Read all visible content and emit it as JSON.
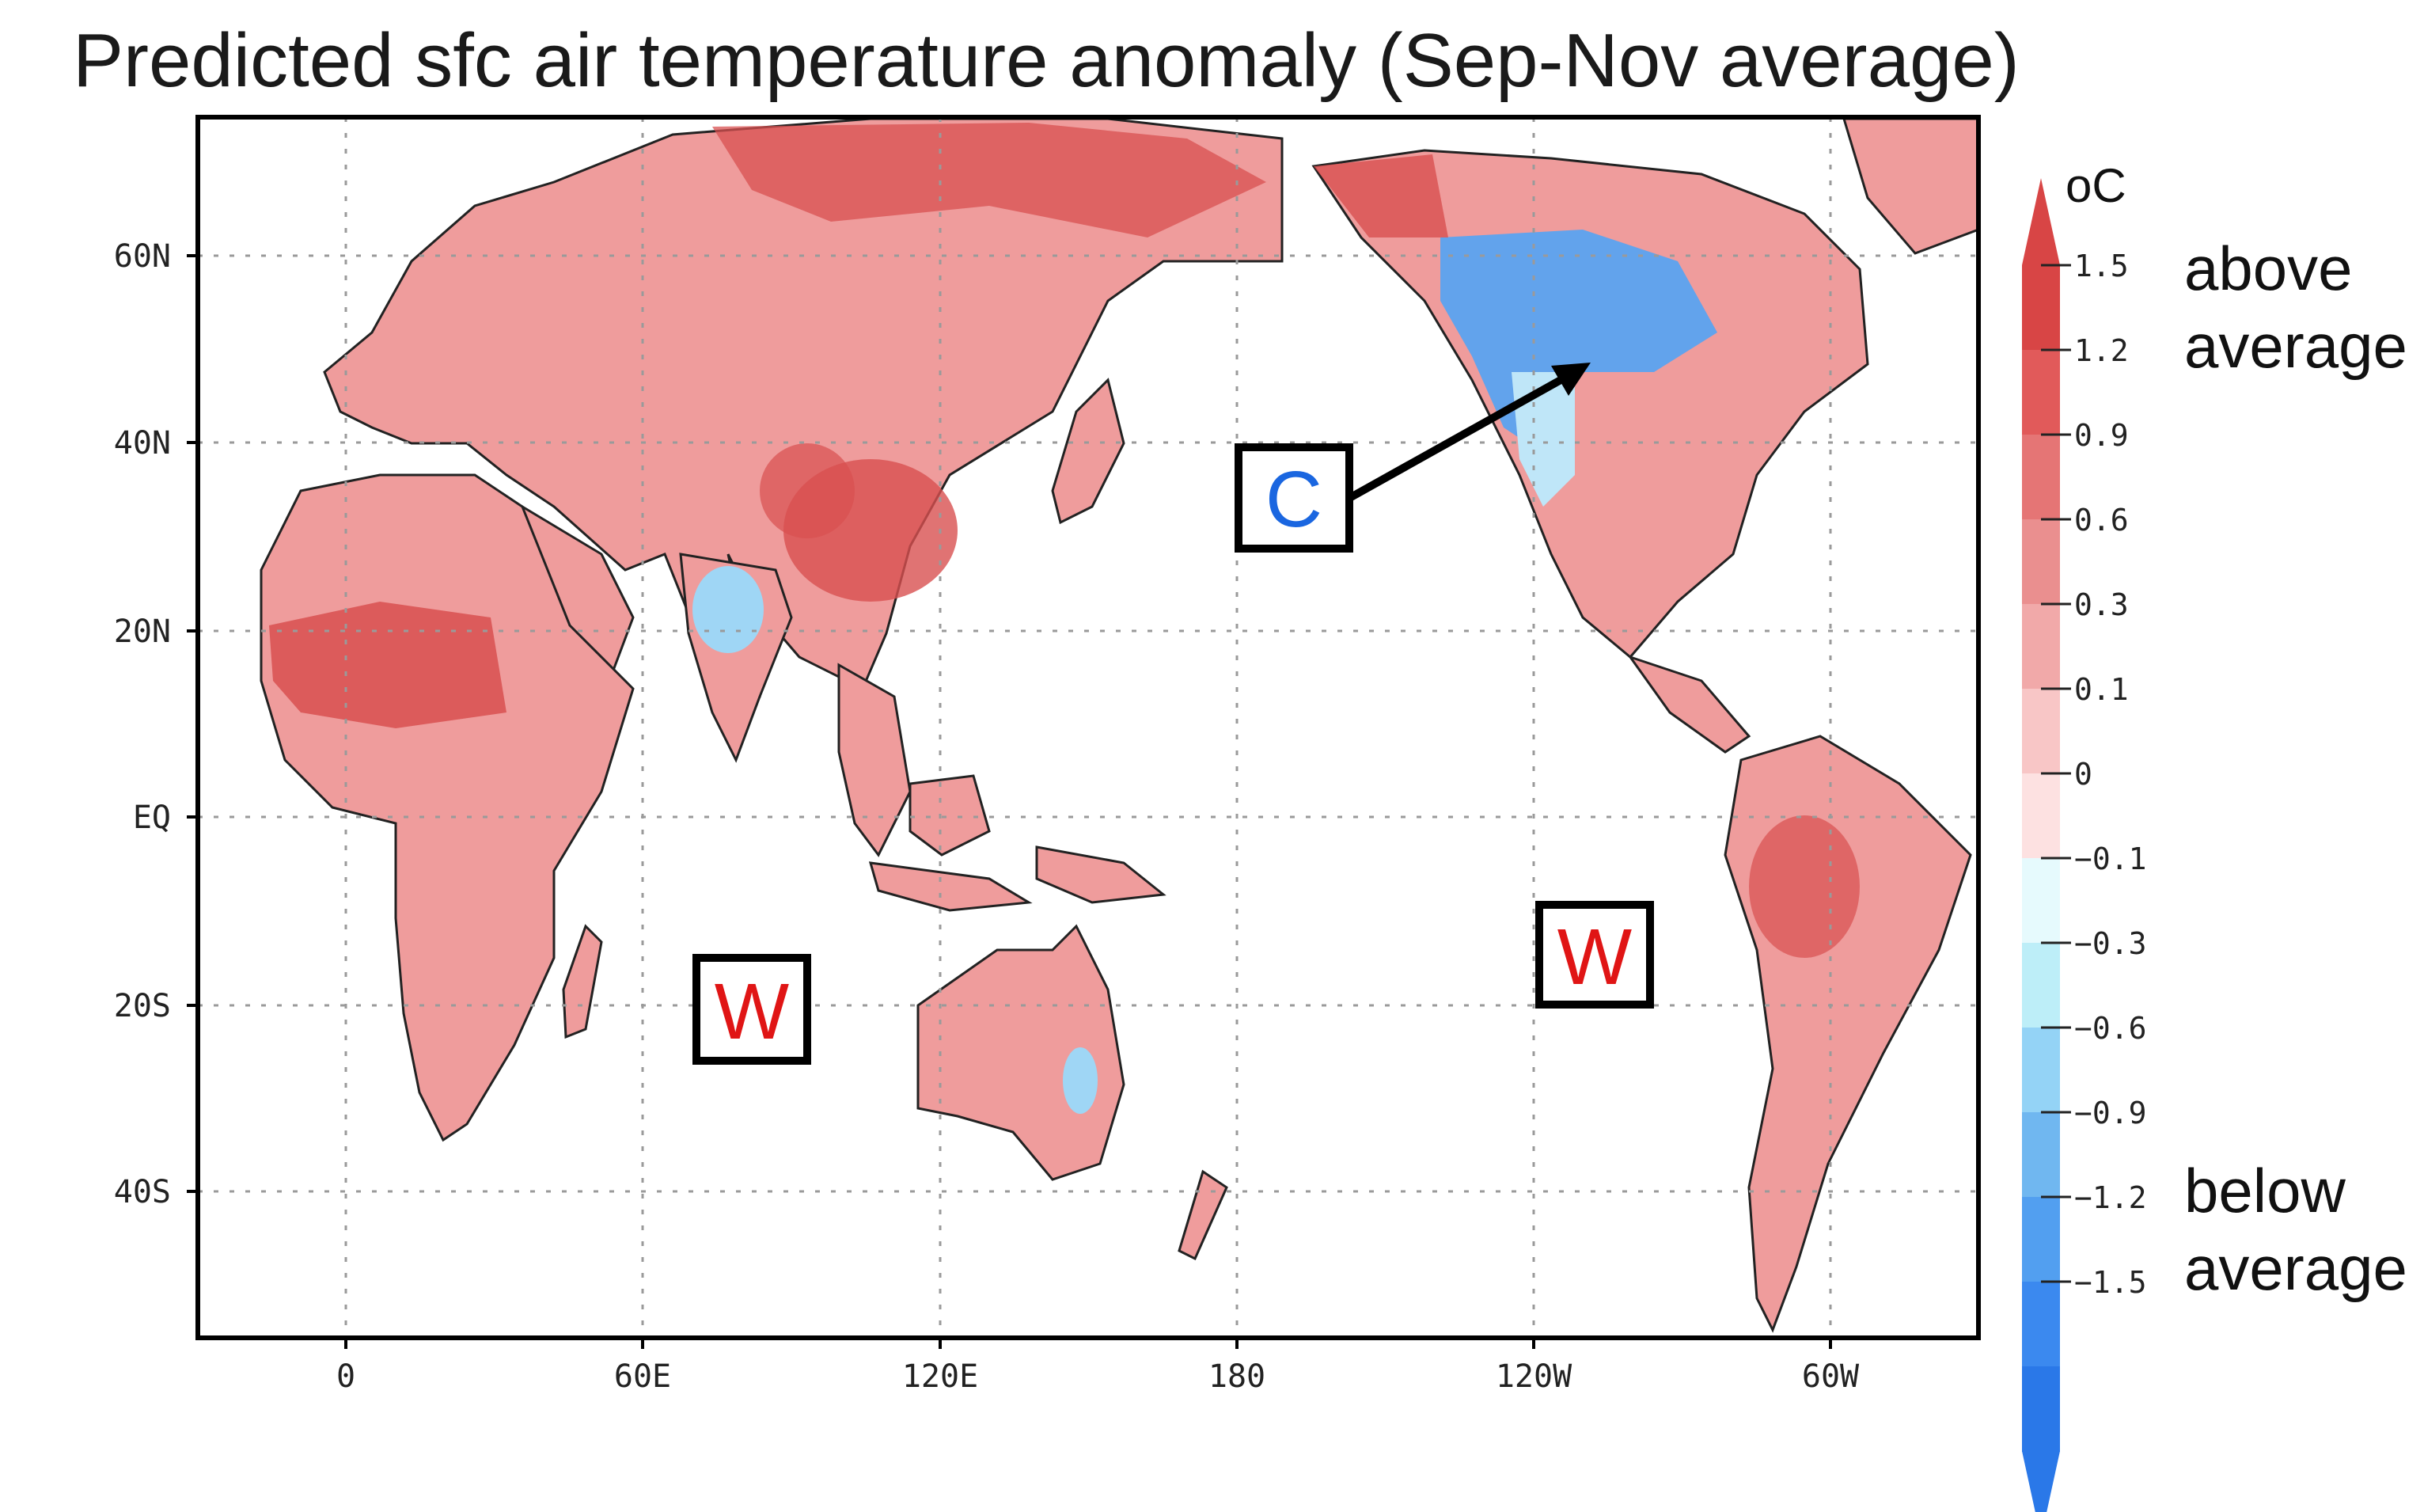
{
  "title": "Predicted sfc air temperature anomaly (Sep-Nov average)",
  "axes": {
    "lat_labels": [
      "60N",
      "40N",
      "20N",
      "EQ",
      "20S",
      "40S"
    ],
    "lon_labels": [
      "0",
      "60E",
      "120E",
      "180",
      "120W",
      "60W"
    ]
  },
  "colorbar": {
    "unit": "oC",
    "tick_labels": [
      "1.5",
      "1.2",
      "0.9",
      "0.6",
      "0.3",
      "0.1",
      "0",
      "−0.1",
      "−0.3",
      "−0.6",
      "−0.9",
      "−1.2",
      "−1.5"
    ],
    "warm_colors": [
      "#d84545",
      "#e15a5a",
      "#e57575",
      "#ea8f8f",
      "#f1a9a9",
      "#f8c6c6",
      "#fde1e1"
    ],
    "cool_colors": [
      "#e6fafd",
      "#bdeef8",
      "#94d3f6",
      "#70b7f0",
      "#529ff0",
      "#3b89ef",
      "#2a78e8"
    ],
    "above_label_1": "above",
    "above_label_2": "average",
    "below_label_1": "below",
    "below_label_2": "average"
  },
  "annotations": {
    "cold_marker": "C",
    "warm_marker_indian": "W",
    "warm_marker_pacific": "W",
    "cold_color": "#1a66e0",
    "warm_color": "#e01515"
  },
  "colors": {
    "land_warm": "#ef9c9c",
    "land_hot": "#d84545",
    "land_cool": "#6fb3f2",
    "ocean": "#ffffff"
  }
}
